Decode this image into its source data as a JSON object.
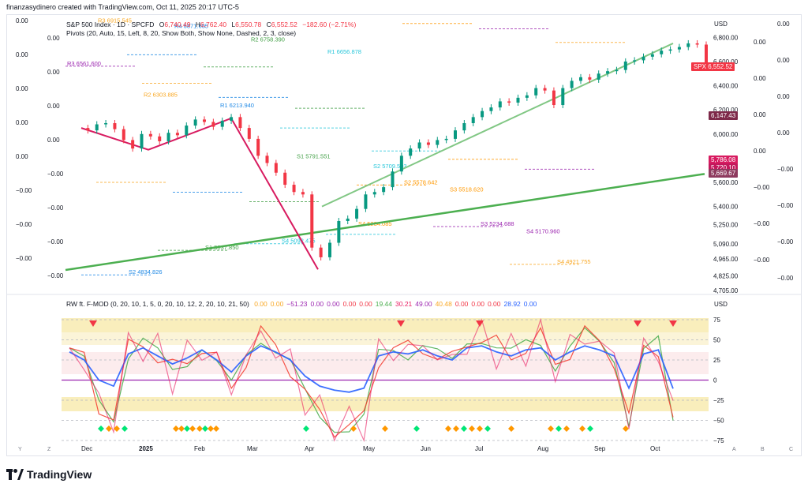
{
  "header": {
    "created_by": "finanzasydinero created with TradingView.com, Oct 11, 2025 20:17 UTC-5"
  },
  "symbol_legend": {
    "name": "S&P 500 Index · 1D · SPCFD",
    "open_label": "O",
    "open": "6,740.49",
    "high_label": "H",
    "high": "6,762.40",
    "low_label": "L",
    "low": "6,550.78",
    "close_label": "C",
    "close": "6,552.52",
    "change": "−182.60 (−2.71%)",
    "pivots": "Pivots (20, Auto, 15, Left, 8, 20, Show Both, Show None, Dashed, 2, 3, close)"
  },
  "oscillator_legend": {
    "name": "RW ft. F-MOD (0, 20, 10, 1, 5, 0, 20, 10, 12, 2, 20, 10, 21, 50)",
    "values": [
      "0.00",
      "0.00",
      "−51.23",
      "0.00",
      "0.00",
      "0.00",
      "0.00",
      "19.44",
      "30.21",
      "49.00",
      "40.48",
      "0.00",
      "0.00",
      "0.00",
      "28.92",
      "0.00"
    ]
  },
  "currency": "USD",
  "price_tags": [
    {
      "label": "SPX",
      "value": "6,552.52",
      "color": "#f23645"
    },
    {
      "label": "",
      "value": "6,147.43",
      "color": "#7e2a4a"
    },
    {
      "label": "",
      "value": "5,786.08",
      "color": "#d81b60"
    },
    {
      "label": "",
      "value": "5,720.10",
      "color": "#c2185b"
    },
    {
      "label": "",
      "value": "5,669.67",
      "color": "#8e3a5e"
    }
  ],
  "left_zero_labels": [
    "0.00",
    "0.00",
    "0.00",
    "0.00",
    "0.00",
    "0.00",
    "0.00",
    "0.00",
    "0.00",
    "−0.00",
    "−0.00",
    "−0.00",
    "−0.00",
    "−0.00",
    "−0.00",
    "−0.00"
  ],
  "right_zero_labels": [
    "0.00",
    "0.00",
    "0.00",
    "0.00",
    "0.00",
    "0.00",
    "0.00",
    "0.00",
    "−0.00",
    "−0.00",
    "−0.00",
    "−0.00",
    "−0.00",
    "−0.00",
    "−0.00"
  ],
  "pivot_labels": [
    {
      "t": "R3",
      "v": "6561.600"
    },
    {
      "t": "R2",
      "v": "6303.885"
    },
    {
      "t": "R1",
      "v": "6213.940"
    },
    {
      "t": "S1",
      "v": "5791.551"
    },
    {
      "t": "S2",
      "v": "5709.503"
    },
    {
      "t": "S3",
      "v": "5518.620"
    },
    {
      "t": "S4",
      "v": "5170.960"
    },
    {
      "t": "R3",
      "v": "6915.545"
    },
    {
      "t": "R4",
      "v": "6871.605"
    },
    {
      "t": "R2",
      "v": "6758.390"
    },
    {
      "t": "R1",
      "v": "6656.878"
    },
    {
      "t": "S2",
      "v": "5578.642"
    },
    {
      "t": "S3",
      "v": "5234.688"
    },
    {
      "t": "S4",
      "v": "4921.755"
    },
    {
      "t": "S2",
      "v": "4834.826"
    },
    {
      "t": "S1",
      "v": "5037.850"
    },
    {
      "t": "S4",
      "v": "5092.475"
    },
    {
      "t": "S4",
      "v": "5234.085"
    }
  ],
  "oscillator_tags": [
    "75",
    "50",
    "25",
    "0",
    "−25",
    "−50",
    "−75"
  ],
  "chart_data": {
    "type": "line",
    "title": "S&P 500 Index · 1D · SPCFD",
    "x_ticks": [
      "Dec",
      "2025",
      "Feb",
      "Mar",
      "Apr",
      "May",
      "Jun",
      "Jul",
      "Aug",
      "Sep",
      "Oct"
    ],
    "y_ticks": [
      6800,
      6600,
      6400,
      6200,
      6000,
      5800,
      5600,
      5400,
      5250,
      5090,
      4965,
      4825,
      4705
    ],
    "y_tick_labels": [
      "6,800.00",
      "6,600.00",
      "6,400.00",
      "6,200.00",
      "6,000.00",
      "5,800.00",
      "5,600.00",
      "5,400.00",
      "5,250.00",
      "5,090.00",
      "4,965.00",
      "4,825.00",
      "4,705.00"
    ],
    "ylim": [
      4705,
      6900
    ],
    "series": [
      {
        "values": [
          6050,
          6030,
          6080,
          6090,
          6040,
          5950,
          5880,
          6000,
          5980,
          5940,
          6010,
          5990,
          6070,
          6120,
          6100,
          6060,
          6110,
          6140,
          6050,
          5960,
          5820,
          5760,
          5680,
          5580,
          5520,
          5500,
          5060,
          4980,
          5100,
          5280,
          5300,
          5380,
          5500,
          5520,
          5560,
          5690,
          5820,
          5880,
          5930,
          5910,
          5950,
          5960,
          6030,
          6090,
          6140,
          6190,
          6220,
          6270,
          6260,
          6300,
          6320,
          6380,
          6360,
          6240,
          6380,
          6440,
          6470,
          6450,
          6500,
          6520,
          6530,
          6600,
          6610,
          6640,
          6660,
          6690,
          6700,
          6720,
          6750,
          6740,
          6552
        ]
      }
    ],
    "lines": [
      {
        "from_value": 4875,
        "to_value": 5669.67,
        "color": "#4caf50"
      },
      {
        "from_value": 5400,
        "to_value": 6750,
        "color": "#81c784"
      }
    ],
    "oscillator": {
      "ylim": [
        -75,
        75
      ],
      "y_ticks": [
        75,
        50,
        25,
        0,
        -25,
        -50,
        -75
      ],
      "series": [
        {
          "values": [
            40,
            20,
            -30,
            -45,
            35,
            50,
            30,
            10,
            25,
            45,
            20,
            -10,
            30,
            55,
            40,
            20,
            -20,
            -45,
            -55,
            -60,
            -50,
            30,
            40,
            35,
            45,
            30,
            20,
            50,
            55,
            40,
            30,
            45,
            50,
            20,
            40,
            55,
            45,
            30,
            -50,
            35,
            45,
            -51.23
          ]
        }
      ]
    }
  }
}
